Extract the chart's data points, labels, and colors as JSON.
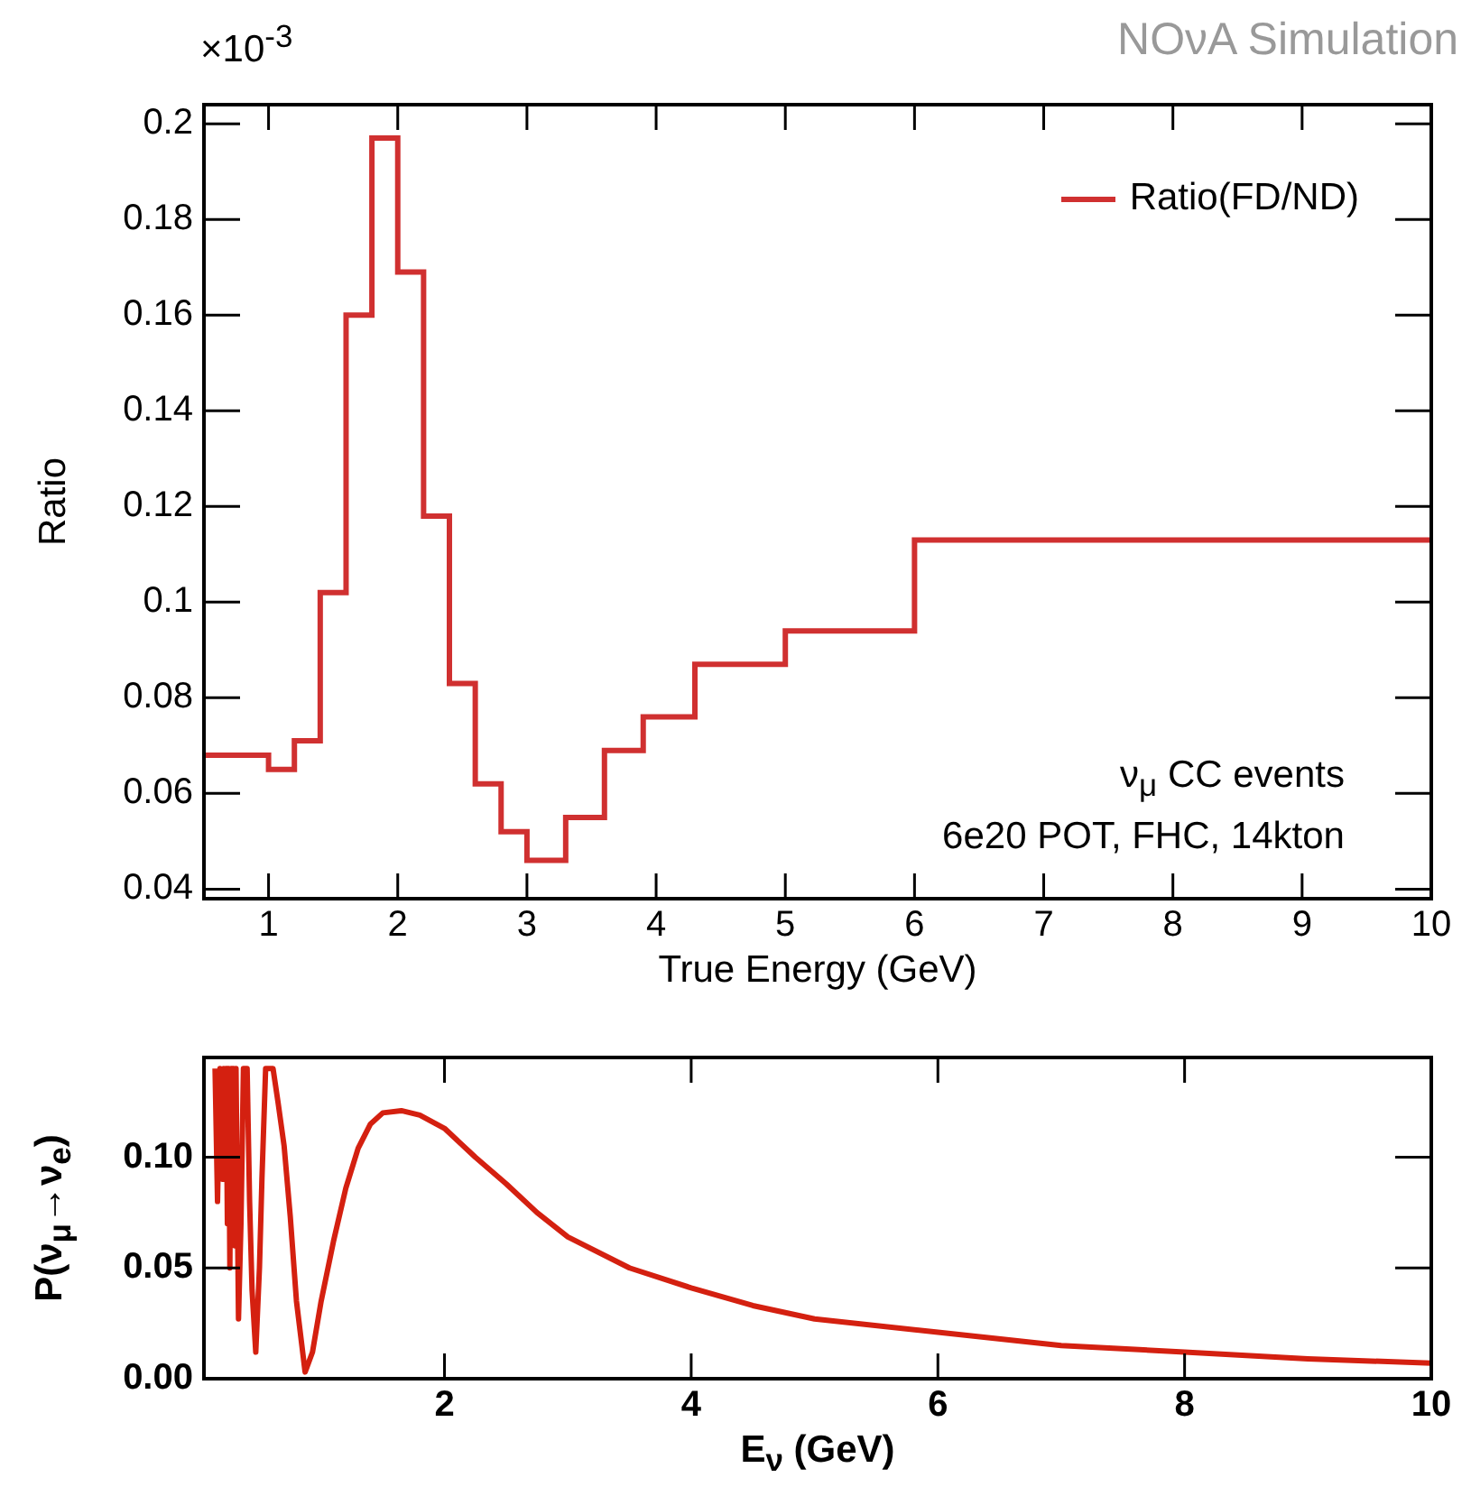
{
  "chart_data": [
    {
      "type": "histogram",
      "xlabel": "True Energy (GeV)",
      "ylabel": "Ratio",
      "bins": [
        0.5,
        1,
        1.2,
        1.4,
        1.6,
        1.8,
        2,
        2.2,
        2.4,
        2.6,
        2.8,
        3,
        3.3,
        3.6,
        3.9,
        4.3,
        5,
        6,
        10
      ],
      "series": [
        {
          "name": "Ratio(FD/ND)",
          "color": "#d03030",
          "values": [
            0.068,
            0.065,
            0.071,
            0.102,
            0.16,
            0.197,
            0.169,
            0.118,
            0.083,
            0.062,
            0.052,
            0.046,
            0.055,
            0.069,
            0.076,
            0.087,
            0.094,
            0.113
          ]
        }
      ],
      "xlim": [
        0.5,
        10
      ],
      "xticks": [
        1,
        2,
        3,
        4,
        5,
        6,
        7,
        8,
        9,
        10
      ],
      "ylim": [
        0.038,
        0.204
      ],
      "yticks": [
        0.04,
        0.06,
        0.08,
        0.1,
        0.12,
        0.14,
        0.16,
        0.18,
        0.2
      ],
      "legend": "top right",
      "grid": false,
      "annotations": [
        "×10$^{-3}$",
        "ν$_{μ}$ CC events",
        "6e20 POT, FHC, 14kton",
        "NOνA Simulation"
      ]
    },
    {
      "type": "line",
      "xlabel": "E$_{ν}$ (GeV)",
      "ylabel": "P(ν$_{μ}$→ν$_{e}$)",
      "series": [
        {
          "color": "#d42010",
          "x": [
            0.14,
            0.16,
            0.18,
            0.2,
            0.21,
            0.22,
            0.23,
            0.24,
            0.25,
            0.26,
            0.27,
            0.28,
            0.29,
            0.3,
            0.31,
            0.33,
            0.35,
            0.37,
            0.4,
            0.42,
            0.44,
            0.47,
            0.5,
            0.52,
            0.55,
            0.61,
            0.65,
            0.7,
            0.75,
            0.8,
            0.87,
            0.93,
            1.0,
            1.1,
            1.2,
            1.3,
            1.4,
            1.5,
            1.65,
            1.8,
            2,
            2.25,
            2.5,
            2.75,
            3,
            3.5,
            4,
            4.5,
            5,
            6,
            7,
            8,
            9,
            10
          ],
          "values": [
            0.14,
            0.08,
            0.14,
            0.09,
            0.14,
            0.1,
            0.14,
            0.07,
            0.14,
            0.05,
            0.14,
            0.07,
            0.14,
            0.06,
            0.14,
            0.027,
            0.07,
            0.14,
            0.14,
            0.08,
            0.04,
            0.012,
            0.05,
            0.09,
            0.14,
            0.14,
            0.125,
            0.105,
            0.073,
            0.035,
            0.003,
            0.012,
            0.035,
            0.062,
            0.086,
            0.104,
            0.115,
            0.12,
            0.121,
            0.119,
            0.113,
            0.1,
            0.088,
            0.075,
            0.064,
            0.05,
            0.041,
            0.033,
            0.027,
            0.021,
            0.015,
            0.012,
            0.009,
            0.007
          ]
        }
      ],
      "xlim": [
        0.05,
        10
      ],
      "xticks": [
        2,
        4,
        6,
        8,
        10
      ],
      "ylim": [
        0,
        0.145
      ],
      "yticks": [
        {
          "value": 0,
          "label": "0.00"
        },
        {
          "value": 0.05,
          "label": "0.05"
        },
        {
          "value": 0.1,
          "label": "0.10"
        }
      ],
      "grid": false,
      "legend": false
    }
  ]
}
